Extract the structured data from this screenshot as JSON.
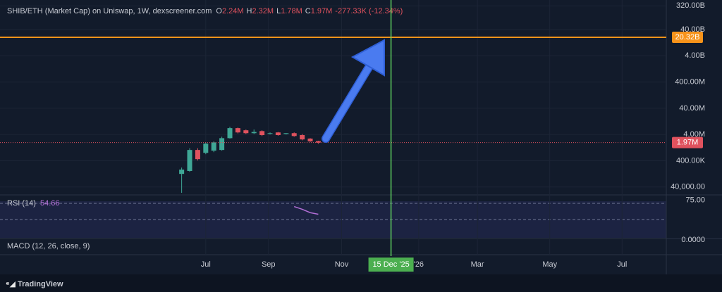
{
  "chart_data": [
    {
      "type": "candlestick",
      "title": "SHIB/ETH (Market Cap) on Uniswap, 1W, dexscreener.com",
      "ohlc_legend": [
        {
          "label": "O",
          "value": "2.24M"
        },
        {
          "label": "H",
          "value": "2.32M"
        },
        {
          "label": "L",
          "value": "1.78M"
        },
        {
          "label": "C",
          "value": "1.97M"
        }
      ],
      "change": "-277.33K (-12.34%)",
      "x": [
        0,
        1,
        2,
        3,
        4,
        5,
        6,
        7,
        8,
        9,
        10,
        11,
        12,
        13,
        14,
        15,
        16,
        17
      ],
      "open": [
        126000,
        163000,
        1030000,
        800000,
        970000,
        1030000,
        2900000,
        7000000,
        5800000,
        4500000,
        5400000,
        4300000,
        4800000,
        4200000,
        4500000,
        3800000,
        2800000,
        2240000
      ],
      "high": [
        220000,
        1200000,
        1200000,
        2000000,
        2200000,
        3300000,
        7900000,
        7400000,
        6200000,
        6200000,
        5800000,
        4800000,
        5000000,
        4500000,
        4800000,
        4200000,
        2900000,
        2320000
      ],
      "low": [
        24000,
        152000,
        410000,
        710000,
        850000,
        970000,
        2800000,
        4400000,
        4200000,
        4200000,
        3500000,
        4000000,
        3600000,
        4000000,
        3300000,
        2400000,
        2100000,
        1780000
      ],
      "close": [
        184000,
        1030000,
        460000,
        1800000,
        2000000,
        2900000,
        7000000,
        4800000,
        4500000,
        5000000,
        3800000,
        4500000,
        3800000,
        4500000,
        3500000,
        2600000,
        2200000,
        1970000
      ],
      "up_color": "#3fa796",
      "down_color": "#e0525e",
      "log_scale": true,
      "ylim": [
        22600,
        535000000000
      ],
      "yticks": [
        {
          "value": 320000000000,
          "label": "320.00B"
        },
        {
          "value": 40000000000,
          "label": "40.00B"
        },
        {
          "value": 4000000000,
          "label": "4.00B"
        },
        {
          "value": 400000000,
          "label": "400.00M"
        },
        {
          "value": 40000000,
          "label": "40.00M"
        },
        {
          "value": 4000000,
          "label": "4.00M"
        },
        {
          "value": 400000,
          "label": "400.00K"
        },
        {
          "value": 40000,
          "label": "40,000.00"
        }
      ],
      "xlim": [
        -22.6,
        60.3
      ],
      "xticks": [
        {
          "value": 3,
          "label": "Jul"
        },
        {
          "value": 10.8,
          "label": "Sep"
        },
        {
          "value": 19.9,
          "label": "Nov"
        },
        {
          "value": 29.5,
          "label": "'26"
        },
        {
          "value": 36.8,
          "label": "Mar"
        },
        {
          "value": 45.8,
          "label": "May"
        },
        {
          "value": 54.8,
          "label": "Jul"
        }
      ],
      "crosshair": {
        "value": 26.05,
        "label": "15 Dec '25",
        "color": "#5fcf5f"
      },
      "levels": [
        {
          "value": 20320000000,
          "label": "20.32B",
          "color": "#f7931a"
        }
      ],
      "last_price": {
        "value": 1970000,
        "label": "1.97M",
        "color": "#e0525e"
      },
      "grid": true
    },
    {
      "type": "line",
      "title": "RSI (14)",
      "value_label": "54.66",
      "x": [
        14,
        15,
        16,
        17
      ],
      "values": [
        66,
        62,
        57,
        54.66
      ],
      "color": "#b36fd6",
      "ylim": [
        20,
        80
      ],
      "yticks": [
        {
          "value": 75,
          "label": "75.00"
        }
      ]
    },
    {
      "type": "indicator",
      "title": "MACD (12, 26, close, 9)",
      "axis_label": "0.0000"
    },
    {
      "type": "footer",
      "brand": "TradingView"
    }
  ]
}
